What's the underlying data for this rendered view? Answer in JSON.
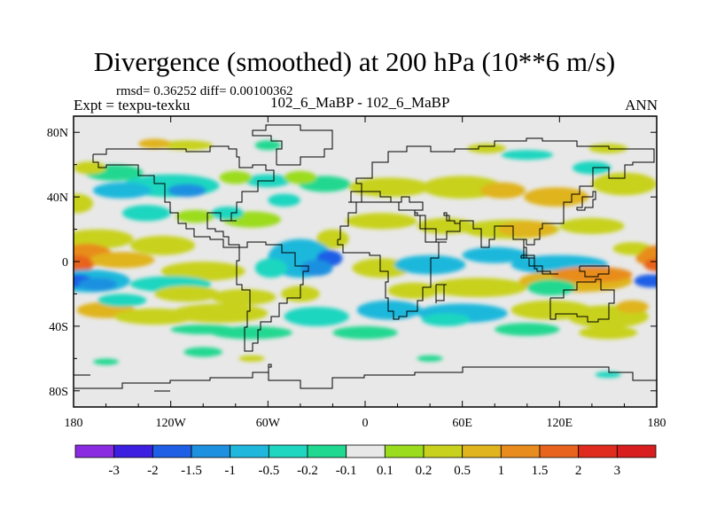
{
  "page": {
    "title": "Divergence (smoothed) at 200 hPa (10**6 m/s)",
    "stats": "rmsd= 0.36252 diff= 0.00100362",
    "expt": "Expt = texpu-texku",
    "case": "102_6_MaBP - 102_6_MaBP",
    "season": "ANN"
  },
  "chart_data": {
    "type": "heatmap",
    "title": "Divergence (smoothed) at 200 hPa (10**6 m/s)",
    "xlabel": "",
    "ylabel": "",
    "xlim": [
      -180,
      180
    ],
    "ylim": [
      -90,
      90
    ],
    "x_ticks": [
      {
        "value": -180,
        "label": "180"
      },
      {
        "value": -120,
        "label": "120W"
      },
      {
        "value": -60,
        "label": "60W"
      },
      {
        "value": 0,
        "label": "0"
      },
      {
        "value": 60,
        "label": "60E"
      },
      {
        "value": 120,
        "label": "120E"
      },
      {
        "value": 180,
        "label": "180"
      }
    ],
    "y_ticks": [
      {
        "value": 80,
        "label": "80N"
      },
      {
        "value": 40,
        "label": "40N"
      },
      {
        "value": 0,
        "label": "0"
      },
      {
        "value": -40,
        "label": "40S"
      },
      {
        "value": -80,
        "label": "80S"
      }
    ],
    "levels": [
      -3,
      -2,
      -1.5,
      -1,
      -0.5,
      -0.2,
      -0.1,
      0.1,
      0.2,
      0.5,
      1,
      1.5,
      2,
      3
    ],
    "level_labels": [
      "-3",
      "-2",
      "-1.5",
      "-1",
      "-0.5",
      "-0.2",
      "-0.1",
      "0.1",
      "0.2",
      "0.5",
      "1",
      "1.5",
      "2",
      "3"
    ],
    "colors": [
      "#8a2be2",
      "#3c1fe0",
      "#1f5fe6",
      "#1e90e0",
      "#1fb8dc",
      "#1fd6c0",
      "#20d890",
      "#e8e8e8",
      "#9bdc1e",
      "#c8d21e",
      "#e0b41e",
      "#e88c1e",
      "#e8641e",
      "#e02c1e",
      "#d81e1e"
    ],
    "neutral_color": "#e8e8e8",
    "bands": [
      {
        "lat": [
          68,
          80
        ],
        "note": "weak mixed blobs near 80N"
      },
      {
        "lat": [
          38,
          62
        ],
        "note": "mid-latitude N: cyan west of 120W, yellow/orange east"
      },
      {
        "lat": [
          8,
          24
        ],
        "note": "subtropical N: yellow/orange over eastern Pacific and Asia"
      },
      {
        "lat": [
          -5,
          10
        ],
        "note": "equator: orange at date line, blue near 20W, cyan Indian Ocean"
      },
      {
        "lat": [
          -20,
          -5
        ],
        "note": "S tropics: deep blue at date line, orange at 120E-180"
      },
      {
        "lat": [
          -45,
          -20
        ],
        "note": "S mid-lat: yellow/orange west, cyan 60W-0 and 30E-90E"
      },
      {
        "lat": [
          -70,
          -55
        ],
        "note": "southern small blobs"
      }
    ]
  }
}
